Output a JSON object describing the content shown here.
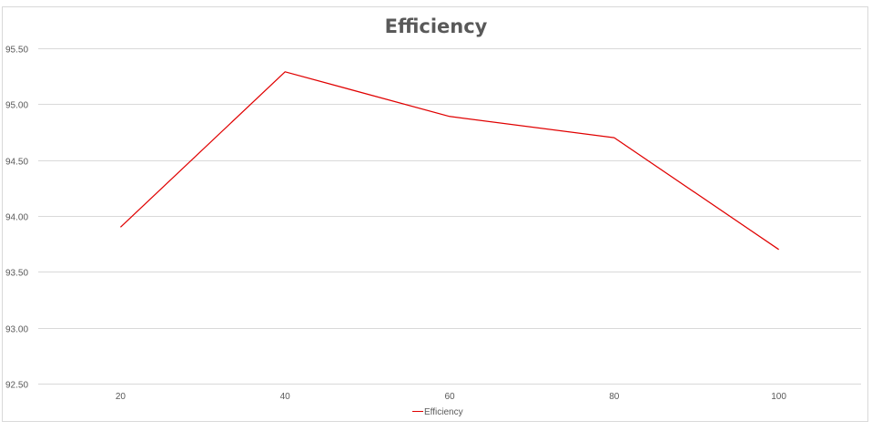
{
  "chart_data": {
    "type": "line",
    "title": "Efficiency",
    "xlabel": "",
    "ylabel": "",
    "categories": [
      "20",
      "40",
      "60",
      "80",
      "100"
    ],
    "series": [
      {
        "name": "Efficiency",
        "color": "#e00000",
        "values": [
          93.9,
          95.29,
          94.89,
          94.7,
          93.7
        ]
      }
    ],
    "ylim": [
      92.5,
      95.5
    ],
    "yticks": [
      "92.50",
      "93.00",
      "93.50",
      "94.00",
      "94.50",
      "95.00",
      "95.50"
    ],
    "grid": true,
    "legend_position": "bottom"
  }
}
